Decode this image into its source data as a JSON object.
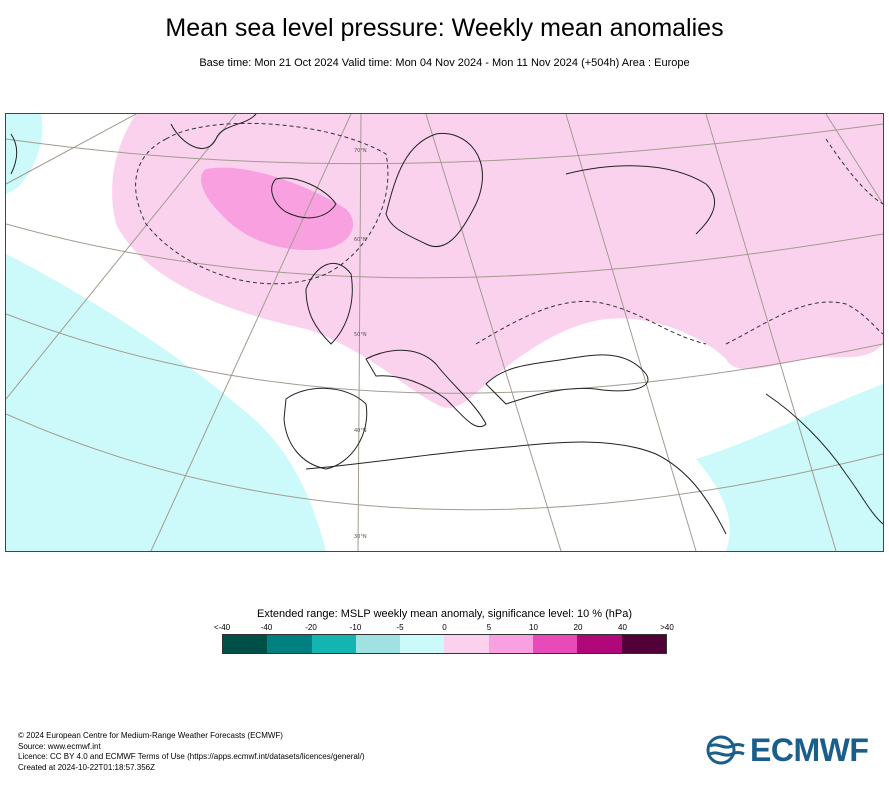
{
  "title": "Mean sea level pressure: Weekly mean anomalies",
  "subtitle": "Base time: Mon 21 Oct 2024 Valid time: Mon 04 Nov 2024 - Mon 11 Nov 2024 (+504h) Area : Europe",
  "legend": {
    "title": "Extended range: MSLP weekly mean anomaly, significance level: 10 % (hPa)",
    "labels": [
      "<-40",
      "-40",
      "-20",
      "-10",
      "-5",
      "0",
      "5",
      "10",
      "20",
      "40",
      ">40"
    ],
    "colors": [
      "#005048",
      "#008080",
      "#14b4b0",
      "#a0e2e2",
      "#ccfafa",
      "#fbd2ee",
      "#f8a0e0",
      "#e84aba",
      "#b0087a",
      "#520038"
    ]
  },
  "map": {
    "graticule_labels": [
      "70°N",
      "60°N",
      "50°N",
      "40°N",
      "30°N"
    ],
    "icons": [
      "coastline-map",
      "graticule-lines",
      "anomaly-shading",
      "contour-lines"
    ]
  },
  "credits": {
    "line1": "© 2024 European Centre for Medium-Range Weather Forecasts (ECMWF)",
    "line2": "Source: www.ecmwf.int",
    "line3": "Licence: CC BY 4.0 and ECMWF Terms of Use (https://apps.ecmwf.int/datasets/licences/general/)",
    "line4": "Created at 2024-10-22T01:18:57.356Z"
  },
  "logo": {
    "text": "ECMWF",
    "color": "#1a5e8c"
  }
}
